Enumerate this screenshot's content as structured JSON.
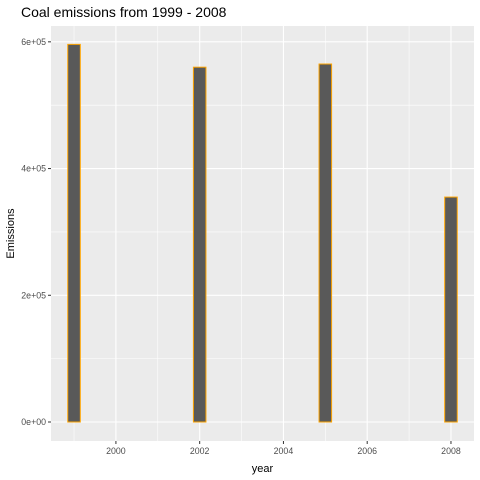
{
  "chart_data": {
    "type": "bar",
    "title": "Coal emissions from 1999 - 2008",
    "xlabel": "year",
    "ylabel": "Emissions",
    "x": [
      1999,
      2002,
      2005,
      2008
    ],
    "values": [
      596000,
      560000,
      565000,
      355000
    ],
    "xlim": [
      1998.45,
      2008.55
    ],
    "ylim": [
      -30000,
      625000
    ],
    "xticks": [
      2000,
      2002,
      2004,
      2006,
      2008
    ],
    "xtick_labels": [
      "2000",
      "2002",
      "2004",
      "2006",
      "2008"
    ],
    "yticks": [
      0,
      200000,
      400000,
      600000
    ],
    "ytick_labels": [
      "0e+00",
      "2e+05",
      "4e+05",
      "6e+05"
    ],
    "bar_width_years": 0.3,
    "grid": true,
    "legend": "none",
    "colors": {
      "panel": "#ebebeb",
      "grid_major": "#ffffff",
      "bar_fill": "#595959",
      "bar_outline": "#ffa500",
      "tick": "#333333"
    }
  }
}
